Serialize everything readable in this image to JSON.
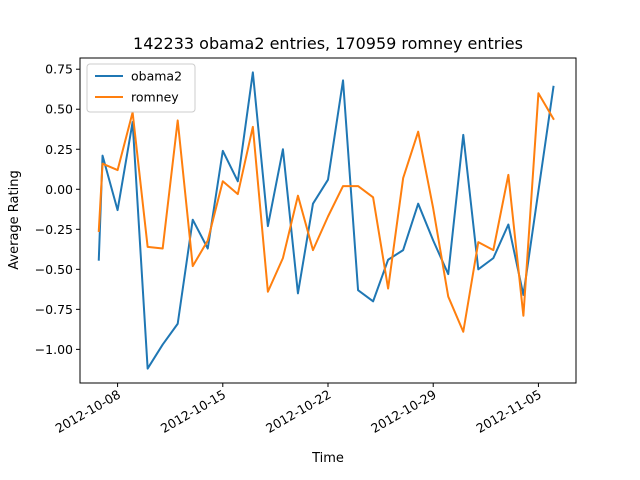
{
  "chart_data": {
    "type": "line",
    "title": "142233 obama2 entries, 170959 romney entries",
    "xlabel": "Time",
    "ylabel": "Average Rating",
    "x_tick_labels": [
      "2012-10-08",
      "2012-10-15",
      "2012-10-22",
      "2012-10-29",
      "2012-11-05"
    ],
    "y_tick_labels": [
      "−1.00",
      "−0.75",
      "−0.50",
      "−0.25",
      "0.00",
      "0.25",
      "0.50",
      "0.75"
    ],
    "y_ticks": [
      -1.0,
      -0.75,
      -0.5,
      -0.25,
      0.0,
      0.25,
      0.5,
      0.75
    ],
    "xlim": [
      "2012-10-05T12:00",
      "2012-11-07T12:00"
    ],
    "ylim": [
      -1.21,
      0.82
    ],
    "grid": false,
    "legend_position": "top-left",
    "series": [
      {
        "name": "obama2",
        "color": "#1f77b4",
        "x": [
          "2012-10-06T18:00",
          "2012-10-07T00:00",
          "2012-10-08T00:00",
          "2012-10-09T00:00",
          "2012-10-10T00:00",
          "2012-10-11T00:00",
          "2012-10-12T00:00",
          "2012-10-13T00:00",
          "2012-10-14T00:00",
          "2012-10-15T00:00",
          "2012-10-16T00:00",
          "2012-10-17T00:00",
          "2012-10-18T00:00",
          "2012-10-19T00:00",
          "2012-10-20T00:00",
          "2012-10-21T00:00",
          "2012-10-22T00:00",
          "2012-10-23T00:00",
          "2012-10-24T00:00",
          "2012-10-25T00:00",
          "2012-10-26T00:00",
          "2012-10-27T00:00",
          "2012-10-28T00:00",
          "2012-10-29T00:00",
          "2012-10-30T00:00",
          "2012-10-31T00:00",
          "2012-11-01T00:00",
          "2012-11-02T00:00",
          "2012-11-03T00:00",
          "2012-11-04T00:00",
          "2012-11-05T00:00",
          "2012-11-06T00:00"
        ],
        "y": [
          -0.44,
          0.21,
          -0.13,
          0.42,
          -1.12,
          -0.97,
          -0.84,
          -0.19,
          -0.37,
          0.24,
          0.05,
          0.73,
          -0.23,
          0.25,
          -0.65,
          -0.09,
          0.06,
          0.68,
          -0.63,
          -0.7,
          -0.44,
          -0.38,
          -0.09,
          -0.32,
          -0.53,
          0.34,
          -0.5,
          -0.43,
          -0.22,
          -0.66,
          -0.01,
          0.64
        ]
      },
      {
        "name": "romney",
        "color": "#ff7f0e",
        "x": [
          "2012-10-06T18:00",
          "2012-10-07T00:00",
          "2012-10-08T00:00",
          "2012-10-09T00:00",
          "2012-10-10T00:00",
          "2012-10-11T00:00",
          "2012-10-12T00:00",
          "2012-10-13T00:00",
          "2012-10-14T00:00",
          "2012-10-15T00:00",
          "2012-10-16T00:00",
          "2012-10-17T00:00",
          "2012-10-18T00:00",
          "2012-10-19T00:00",
          "2012-10-20T00:00",
          "2012-10-21T00:00",
          "2012-10-22T00:00",
          "2012-10-23T00:00",
          "2012-10-24T00:00",
          "2012-10-25T00:00",
          "2012-10-26T00:00",
          "2012-10-27T00:00",
          "2012-10-28T00:00",
          "2012-10-29T00:00",
          "2012-10-30T00:00",
          "2012-10-31T00:00",
          "2012-11-01T00:00",
          "2012-11-02T00:00",
          "2012-11-03T00:00",
          "2012-11-04T00:00",
          "2012-11-05T00:00",
          "2012-11-06T00:00"
        ],
        "y": [
          -0.26,
          0.16,
          0.12,
          0.48,
          -0.36,
          -0.37,
          0.43,
          -0.48,
          -0.32,
          0.05,
          -0.03,
          0.39,
          -0.64,
          -0.43,
          -0.04,
          -0.38,
          -0.17,
          0.02,
          0.02,
          -0.05,
          -0.62,
          0.07,
          0.36,
          -0.12,
          -0.67,
          -0.89,
          -0.33,
          -0.38,
          0.09,
          -0.79,
          0.6,
          0.44
        ]
      }
    ]
  }
}
